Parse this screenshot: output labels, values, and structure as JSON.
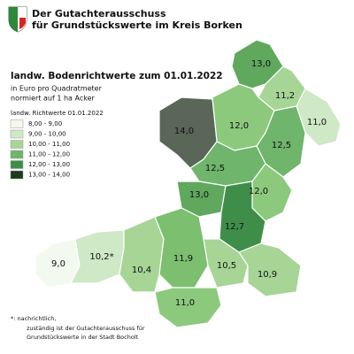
{
  "header": {
    "title_lines": [
      "Der Gutachterausschuss",
      "für Grundstückswerte im Kreis Borken"
    ]
  },
  "map": {
    "title": "landw. Bodenrichtwerte zum 01.01.2022",
    "subtitle_lines": [
      "in Euro pro Quadratmeter",
      "normiert auf 1 ha Acker"
    ]
  },
  "legend": {
    "title": "landw. Richtwerte 01.01.2022",
    "items": [
      "8,00 - 9,00",
      "9,00 - 10,00",
      "10,00 - 11,00",
      "11,00 - 12,00",
      "12,00 - 13,00",
      "13,00 - 14,00"
    ]
  },
  "regions": [
    {
      "label": "13,0"
    },
    {
      "label": "11,2"
    },
    {
      "label": "11,0"
    },
    {
      "label": "12,0"
    },
    {
      "label": "14,0"
    },
    {
      "label": "12,5"
    },
    {
      "label": "12,5"
    },
    {
      "label": "12,0"
    },
    {
      "label": "13,0"
    },
    {
      "label": "12,7"
    },
    {
      "label": "9,0"
    },
    {
      "label": "10,2*"
    },
    {
      "label": "10,4"
    },
    {
      "label": "11,9"
    },
    {
      "label": "10,5"
    },
    {
      "label": "10,9"
    },
    {
      "label": "11,0"
    }
  ],
  "footnote": {
    "lines": [
      "*: nachrichtlich,",
      "zuständig ist der Gutachterausschuss für",
      "Grundstückswerte in der Stadt Bocholt"
    ]
  }
}
